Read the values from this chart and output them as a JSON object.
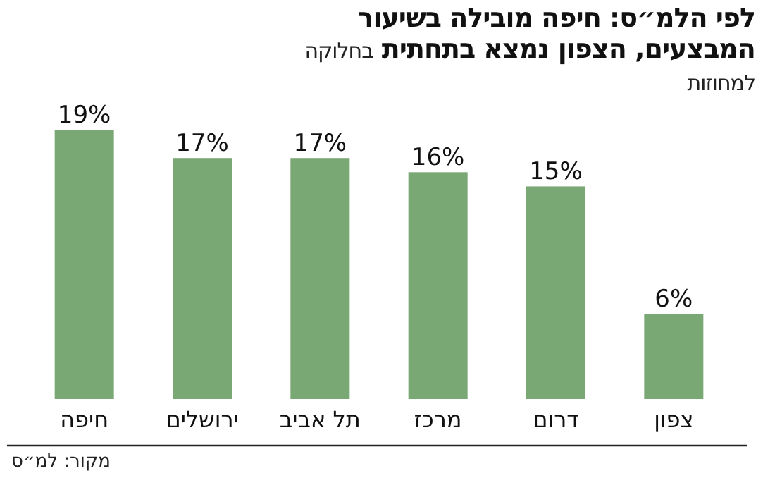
{
  "chart_data": {
    "type": "bar",
    "title": "לפי הלמ״ס: חיפה מובילה בשיעור המבצעים, הצפון נמצא בתחתית",
    "subtitle": "בחלוקה למחוזות",
    "categories": [
      "חיפה",
      "ירושלים",
      "תל אביב",
      "מרכז",
      "דרום",
      "צפון"
    ],
    "values": [
      19,
      17,
      17,
      16,
      15,
      6
    ],
    "value_labels": [
      "19%",
      "17%",
      "17%",
      "16%",
      "15%",
      "6%"
    ],
    "color": "#7aa874",
    "annotations": [
      "מקור: למ״ס"
    ]
  }
}
